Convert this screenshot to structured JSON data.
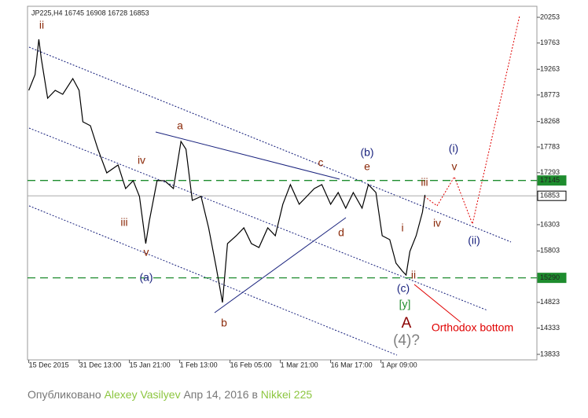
{
  "chart_data": {
    "type": "line",
    "title": "JP225,H4  16745 16908 16728 16853",
    "color": "#000000",
    "x": [
      1,
      6,
      9,
      11,
      16,
      22,
      28,
      36,
      41,
      44,
      50,
      56,
      63,
      72,
      78,
      84,
      89,
      94,
      97,
      103,
      109,
      116,
      122,
      126,
      131,
      138,
      144,
      150,
      155,
      159,
      166,
      172,
      178,
      184,
      191,
      197,
      203,
      209,
      216,
      222,
      228,
      234,
      241,
      247,
      253,
      259,
      266,
      271,
      277,
      282,
      288,
      293,
      298,
      301,
      304,
      309,
      314,
      316
    ],
    "values": [
      18862,
      19161,
      19834,
      19460,
      18712,
      18862,
      18787,
      19086,
      18862,
      18263,
      18188,
      17739,
      17290,
      17440,
      16991,
      17141,
      16841,
      15943,
      16392,
      17141,
      17141,
      16991,
      17889,
      17739,
      16766,
      16841,
      16243,
      15494,
      14821,
      15943,
      16093,
      16243,
      15943,
      15868,
      16243,
      16093,
      16692,
      17066,
      16692,
      16841,
      16991,
      17066,
      16692,
      16916,
      16617,
      16916,
      16617,
      17066,
      16916,
      16093,
      16018,
      15569,
      15419,
      15344,
      15793,
      16093,
      16542,
      16871
    ],
    "xlim": [
      0,
      405
    ],
    "xticks": [
      {
        "value": 1,
        "label": "15 Dec 2015"
      },
      {
        "value": 41,
        "label": "31 Dec 13:00"
      },
      {
        "value": 81,
        "label": "15 Jan 21:00"
      },
      {
        "value": 121,
        "label": "1 Feb 13:00"
      },
      {
        "value": 161,
        "label": "16 Feb 05:00"
      },
      {
        "value": 201,
        "label": "1 Mar 21:00"
      },
      {
        "value": 241,
        "label": "16 Mar 17:00"
      },
      {
        "value": 281,
        "label": "1 Apr 09:00"
      }
    ],
    "ylim": [
      13728,
      20463
    ],
    "yticks": [
      20253,
      19763,
      19263,
      18773,
      18268,
      17783,
      17293,
      16303,
      15803,
      14823,
      14333,
      13833
    ],
    "levels": [
      {
        "value": 17145,
        "color": "#1e8c2e",
        "style": "dashed"
      },
      {
        "value": 16853,
        "color": "#aaaaaa",
        "style": "solid"
      },
      {
        "value": 15290,
        "color": "#1e8c2e",
        "style": "dashed"
      }
    ],
    "annotations": [
      {
        "text": "ii",
        "color": "#8b2a0a"
      },
      {
        "text": "iii",
        "color": "#8b2a0a"
      },
      {
        "text": "iv",
        "color": "#8b2a0a"
      },
      {
        "text": "v",
        "color": "#8b2a0a"
      },
      {
        "text": "(a)",
        "color": "#1a237e"
      },
      {
        "text": "a",
        "color": "#8b2a0a"
      },
      {
        "text": "b",
        "color": "#8b2a0a"
      },
      {
        "text": "c",
        "color": "#8b2a0a"
      },
      {
        "text": "d",
        "color": "#8b2a0a"
      },
      {
        "text": "(b)",
        "color": "#1a237e"
      },
      {
        "text": "e",
        "color": "#8b2a0a"
      },
      {
        "text": "i",
        "color": "#8b2a0a"
      },
      {
        "text": "ii",
        "color": "#8b2a0a"
      },
      {
        "text": "iii",
        "color": "#8b2a0a"
      },
      {
        "text": "iv",
        "color": "#8b2a0a"
      },
      {
        "text": "(c)",
        "color": "#1a237e"
      },
      {
        "text": "[y]",
        "color": "#1e8c2e"
      },
      {
        "text": "A",
        "color": "#8b0000"
      },
      {
        "text": "(4)?",
        "color": "#808080"
      },
      {
        "text": "(i)",
        "color": "#1a237e"
      },
      {
        "text": "v",
        "color": "#8b2a0a"
      },
      {
        "text": "(ii)",
        "color": "#1a237e"
      },
      {
        "text": "Orthodox bottom",
        "color": "#e00000"
      }
    ]
  },
  "footer": {
    "prefix": "Опубликовано ",
    "author": "Alexey Vasilyev",
    "middle": " Апр 14, 2016 в ",
    "instrument": "Nikkei 225"
  }
}
